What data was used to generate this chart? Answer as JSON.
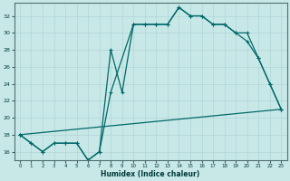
{
  "xlabel": "Humidex (Indice chaleur)",
  "bg_color": "#c8e8e8",
  "grid_color": "#b0d4d4",
  "line_color": "#006868",
  "xlim": [
    -0.5,
    23.5
  ],
  "ylim": [
    15.0,
    33.5
  ],
  "xticks": [
    0,
    1,
    2,
    3,
    4,
    5,
    6,
    7,
    8,
    9,
    10,
    11,
    12,
    13,
    14,
    15,
    16,
    17,
    18,
    19,
    20,
    21,
    22,
    23
  ],
  "yticks": [
    16,
    18,
    20,
    22,
    24,
    26,
    28,
    30,
    32
  ],
  "c1x": [
    0,
    1,
    2,
    3,
    4,
    5,
    6,
    7,
    8,
    9,
    10,
    11,
    12,
    13,
    14,
    15,
    16,
    17,
    18,
    19,
    20,
    21,
    22,
    23
  ],
  "c1y": [
    18,
    17,
    16,
    17,
    17,
    17,
    15,
    16,
    28,
    23,
    31,
    31,
    31,
    31,
    33,
    32,
    32,
    31,
    31,
    30,
    29,
    27,
    24,
    21
  ],
  "c2x": [
    0,
    1,
    2,
    3,
    4,
    5,
    6,
    7,
    8,
    10,
    11,
    12,
    13,
    14,
    15,
    16,
    17,
    18,
    19,
    20,
    21,
    22,
    23
  ],
  "c2y": [
    18,
    17,
    16,
    17,
    17,
    17,
    15,
    16,
    23,
    31,
    31,
    31,
    31,
    33,
    32,
    32,
    31,
    31,
    30,
    30,
    27,
    24,
    21
  ],
  "c3x": [
    0,
    23
  ],
  "c3y": [
    18,
    21
  ]
}
